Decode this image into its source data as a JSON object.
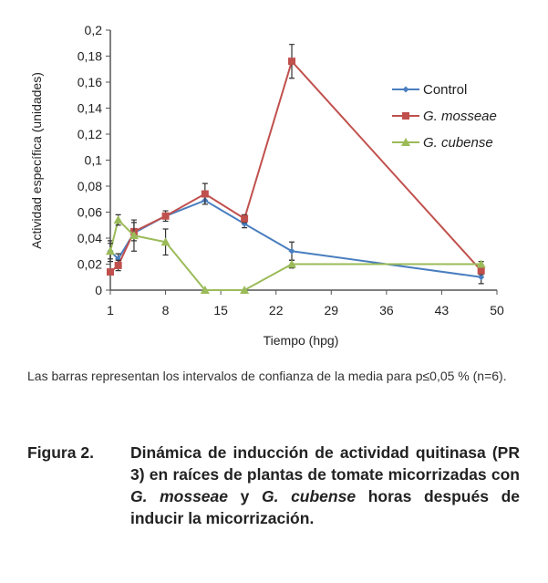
{
  "chart_data": {
    "type": "line",
    "xlabel": "Tiempo (hpg)",
    "ylabel": "Actividad específica (unidades)",
    "xlim": [
      1,
      50
    ],
    "ylim": [
      0,
      0.2
    ],
    "xticks": [
      "1",
      "8",
      "15",
      "22",
      "29",
      "36",
      "43",
      "50"
    ],
    "xtick_values": [
      1,
      8,
      15,
      22,
      29,
      36,
      43,
      50
    ],
    "yticks": [
      "0",
      "0,02",
      "0,04",
      "0,06",
      "0,08",
      "0,1",
      "0,12",
      "0,14",
      "0,16",
      "0,18",
      "0,2"
    ],
    "ytick_values": [
      0,
      0.02,
      0.04,
      0.06,
      0.08,
      0.1,
      0.12,
      0.14,
      0.16,
      0.18,
      0.2
    ],
    "legend_position": "top-right",
    "x": [
      1,
      2,
      4,
      8,
      13,
      18,
      24,
      48
    ],
    "series": [
      {
        "name": "Control",
        "color": "#4a7ebf",
        "marker": "diamond",
        "values": [
          0.03,
          0.024,
          0.044,
          0.057,
          0.069,
          0.051,
          0.03,
          0.01
        ],
        "errors": [
          0.008,
          0.004,
          0.002,
          0.004,
          0.003,
          0.003,
          0.007,
          0.005
        ]
      },
      {
        "name": "G. mosseae",
        "color": "#c0504d",
        "marker": "square",
        "values": [
          0.014,
          0.019,
          0.045,
          0.057,
          0.074,
          0.055,
          0.176,
          0.015
        ],
        "errors": [
          0.002,
          0.004,
          0.007,
          0.002,
          0.008,
          0.003,
          0.013,
          0.003
        ]
      },
      {
        "name": "G. cubense",
        "color": "#9bbb59",
        "marker": "triangle",
        "values": [
          0.03,
          0.054,
          0.042,
          0.037,
          0,
          0,
          0.02,
          0.02
        ],
        "errors": [
          0.006,
          0.004,
          0.012,
          0.01,
          0,
          0,
          0.003,
          0.002
        ]
      }
    ]
  },
  "note": "Las barras representan los intervalos de confianza de la media para p≤0,05 % (n=6).",
  "caption": {
    "label": "Figura 2.",
    "parts": [
      "Dinámica de inducción de actividad quitinasa (PR 3) en raíces de plantas de tomate micorrizadas con ",
      "G. mosseae",
      " y ",
      "G. cubense",
      " horas después de inducir la micorrización."
    ]
  }
}
